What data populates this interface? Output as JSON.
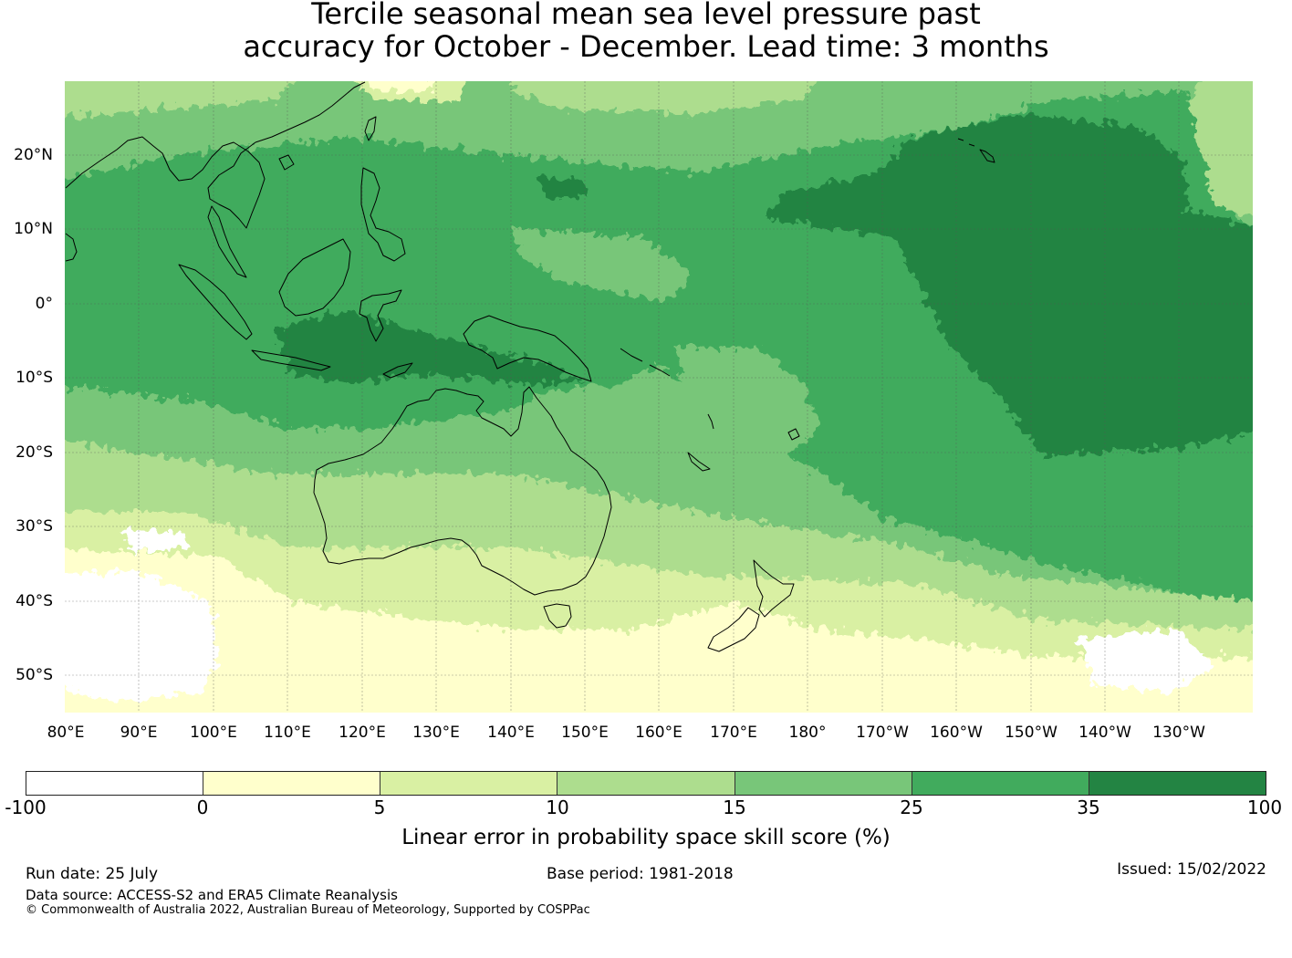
{
  "title": {
    "line1": "Tercile seasonal mean sea level pressure past",
    "line2": "accuracy for October - December. Lead time: 3 months"
  },
  "map": {
    "lat_labels": [
      "20°N",
      "10°N",
      "0°",
      "10°S",
      "20°S",
      "30°S",
      "40°S",
      "50°S"
    ],
    "lon_labels": [
      "80°E",
      "90°E",
      "100°E",
      "110°E",
      "120°E",
      "130°E",
      "140°E",
      "150°E",
      "160°E",
      "170°E",
      "180°",
      "170°W",
      "160°W",
      "150°W",
      "140°W",
      "130°W"
    ],
    "lat_range": [
      "30°N",
      "55°S"
    ],
    "lon_range": [
      "80°E",
      "120°W"
    ],
    "gridlines": true,
    "coastlines": true
  },
  "colorbar": {
    "ticks": [
      "-100",
      "0",
      "5",
      "10",
      "15",
      "25",
      "35",
      "100"
    ],
    "colors": [
      "#ffffff",
      "#ffffcc",
      "#d9f0a3",
      "#addd8e",
      "#78c679",
      "#41ab5d",
      "#238443"
    ],
    "label": "Linear error in probability space skill score (%)"
  },
  "footer": {
    "run_date": "Run date: 25 July",
    "base_period": "Base period: 1981-2018",
    "issued": "Issued: 15/02/2022",
    "data_source": "Data source: ACCESS-S2 and ERA5 Climate Reanalysis",
    "copyright": "© Commonwealth of Australia 2022, Australian Bureau of Meteorology, Supported by COSPPac"
  }
}
